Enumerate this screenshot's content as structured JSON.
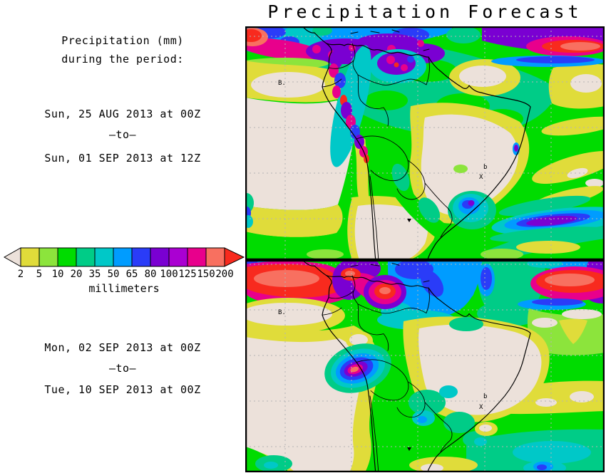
{
  "title": "Precipitation Forecast",
  "info_panel": {
    "heading_line1": "Precipitation (mm)",
    "heading_line2": "during the period:",
    "period1_start": "Sun, 25 AUG 2013 at 00Z",
    "period1_separator": "–to–",
    "period1_end": "Sun, 01 SEP 2013 at 12Z",
    "period2_start": "Mon, 02 SEP 2013 at 00Z",
    "period2_separator": "–to–",
    "period2_end": "Tue, 10 SEP 2013 at 00Z"
  },
  "legend": {
    "unit_label": "millimeters",
    "tick_labels": [
      "2",
      "5",
      "10",
      "20",
      "35",
      "50",
      "65",
      "80",
      "100",
      "125",
      "150",
      "200"
    ],
    "band_colors": [
      "#e0dc3a",
      "#8ce43c",
      "#00dc00",
      "#00cc87",
      "#00c8c8",
      "#009cff",
      "#2a3cf8",
      "#7a00d2",
      "#aa00d2",
      "#e8008c",
      "#f87060"
    ],
    "underflow_color": "#ece1da",
    "overflow_color": "#f82a1e"
  },
  "maps": {
    "marker_station": "B.",
    "marker_x": "X",
    "marker_small_b": "b"
  },
  "palette": {
    "dry_cream": "#ece1da",
    "land_outline": "#000000",
    "grid_gray": "#b4b4b4",
    "page_background": "#ffffff"
  }
}
